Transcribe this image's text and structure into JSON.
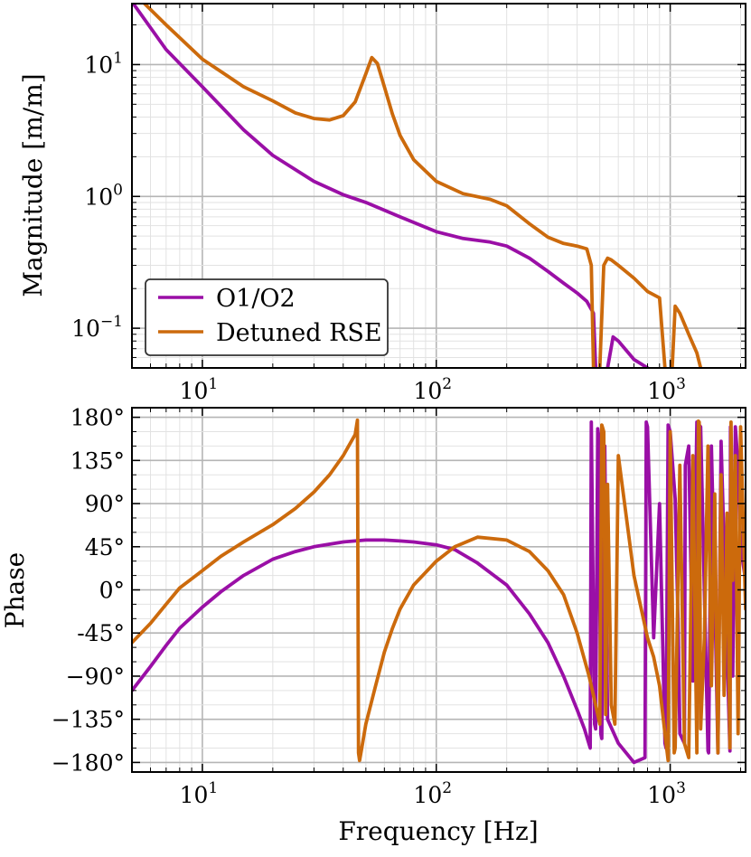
{
  "chart_data": [
    {
      "type": "line",
      "panel": "magnitude",
      "xscale": "log",
      "yscale": "log",
      "xlim": [
        5,
        2100
      ],
      "ylim": [
        0.05,
        29
      ],
      "ylabel": "Magnitude [m/m]",
      "xticks": [
        {
          "value": 10,
          "base": "10",
          "exp": "1"
        },
        {
          "value": 100,
          "base": "10",
          "exp": "2"
        },
        {
          "value": 1000,
          "base": "10",
          "exp": "3"
        }
      ],
      "yticks": [
        {
          "value": 10,
          "base": "10",
          "exp": "1"
        },
        {
          "value": 1,
          "base": "10",
          "exp": "0"
        },
        {
          "value": 0.1,
          "base": "10",
          "exp": "−1"
        }
      ],
      "grid": true,
      "legend": {
        "position": "bottom-left"
      },
      "series": [
        {
          "name": "O1/O2",
          "color": "#9a0fa6",
          "x": [
            5,
            7,
            10,
            15,
            20,
            30,
            40,
            50,
            70,
            100,
            130,
            170,
            200,
            250,
            300,
            350,
            400,
            440,
            470,
            480,
            500,
            520,
            540,
            570,
            600,
            700,
            800
          ],
          "y": [
            30,
            13,
            6.8,
            3.2,
            2.05,
            1.3,
            1.03,
            0.9,
            0.7,
            0.54,
            0.48,
            0.45,
            0.42,
            0.34,
            0.27,
            0.22,
            0.185,
            0.16,
            0.13,
            0.05,
            null,
            null,
            0.05,
            0.086,
            0.08,
            0.058,
            0.05
          ]
        },
        {
          "name": "Detuned RSE",
          "color": "#cc6a0c",
          "x": [
            5,
            7,
            10,
            15,
            20,
            25,
            30,
            35,
            40,
            45,
            50,
            53,
            56,
            60,
            65,
            70,
            80,
            100,
            130,
            170,
            200,
            250,
            300,
            350,
            400,
            440,
            460,
            470,
            480,
            490,
            500,
            520,
            540,
            560,
            600,
            700,
            800,
            900,
            950,
            980,
            1000,
            1020,
            1050,
            1100,
            1200,
            1300,
            1350
          ],
          "y": [
            36,
            20,
            11,
            6.8,
            5.3,
            4.3,
            3.9,
            3.8,
            4.1,
            5.2,
            8.5,
            11.3,
            10.2,
            6.8,
            4.2,
            2.9,
            1.9,
            1.3,
            1.05,
            0.95,
            0.85,
            0.62,
            0.49,
            0.44,
            0.42,
            0.4,
            0.3,
            0.05,
            null,
            null,
            0.05,
            0.3,
            0.34,
            0.33,
            0.3,
            0.24,
            0.19,
            0.17,
            0.05,
            null,
            null,
            0.05,
            0.147,
            0.13,
            0.09,
            0.065,
            0.05
          ]
        }
      ]
    },
    {
      "type": "line",
      "panel": "phase",
      "xscale": "log",
      "xlim": [
        5,
        2100
      ],
      "ylim": [
        -190,
        190
      ],
      "xlabel": "Frequency [Hz]",
      "ylabel": "Phase",
      "xticks": [
        {
          "value": 10,
          "base": "10",
          "exp": "1"
        },
        {
          "value": 100,
          "base": "10",
          "exp": "2"
        },
        {
          "value": 1000,
          "base": "10",
          "exp": "3"
        }
      ],
      "yticks": [
        {
          "value": 180,
          "label": "180°"
        },
        {
          "value": 135,
          "label": "135°"
        },
        {
          "value": 90,
          "label": "90°"
        },
        {
          "value": 45,
          "label": "45°"
        },
        {
          "value": 0,
          "label": "0°"
        },
        {
          "value": -45,
          "label": "-45°"
        },
        {
          "value": -90,
          "label": "−90°"
        },
        {
          "value": -135,
          "label": "−135°"
        },
        {
          "value": -180,
          "label": "−180°"
        }
      ],
      "grid": true,
      "series": [
        {
          "name": "O1/O2",
          "color": "#9a0fa6",
          "x": [
            5,
            6,
            7,
            8,
            10,
            12,
            15,
            20,
            25,
            30,
            40,
            50,
            60,
            70,
            80,
            100,
            120,
            150,
            200,
            250,
            300,
            350,
            400,
            430,
            455,
            460,
            475,
            480,
            490,
            495,
            505,
            510,
            520,
            525,
            540,
            600,
            700,
            780,
            790,
            800,
            850,
            900,
            950,
            960,
            980,
            1000,
            1050,
            1080,
            1100,
            1150,
            1160,
            1200,
            1250,
            1300,
            1350,
            1450,
            1460,
            1500,
            1550,
            1600,
            1650,
            1800,
            1810,
            1850,
            1900,
            1950,
            2000,
            2100
          ],
          "y": [
            -105,
            -80,
            -58,
            -40,
            -18,
            -2,
            15,
            32,
            40,
            45,
            50,
            52,
            52,
            51,
            50,
            47,
            42,
            28,
            5,
            -25,
            -55,
            -90,
            -125,
            -145,
            -165,
            175,
            -140,
            -145,
            168,
            160,
            -150,
            -155,
            145,
            150,
            -135,
            -160,
            -180,
            -175,
            175,
            170,
            -50,
            90,
            -160,
            -165,
            172,
            165,
            95,
            -30,
            -150,
            -160,
            130,
            150,
            -95,
            175,
            170,
            -168,
            -170,
            150,
            0,
            -170,
            155,
            -168,
            170,
            -90,
            170,
            130,
            45,
            10
          ]
        },
        {
          "name": "Detuned RSE",
          "color": "#cc6a0c",
          "x": [
            5,
            6,
            7,
            8,
            10,
            12,
            15,
            20,
            25,
            30,
            35,
            40,
            45,
            46,
            46.5,
            47,
            48,
            50,
            55,
            60,
            65,
            70,
            80,
            100,
            120,
            150,
            200,
            250,
            300,
            350,
            400,
            450,
            480,
            500,
            510,
            520,
            530,
            540,
            560,
            580,
            600,
            700,
            800,
            850,
            900,
            950,
            980,
            1000,
            1040,
            1050,
            1100,
            1150,
            1200,
            1250,
            1300,
            1320,
            1330,
            1350,
            1400,
            1450,
            1500,
            1550,
            1600,
            1650,
            1700,
            1750,
            1800,
            1820,
            1850,
            1900,
            1950,
            2000,
            2100
          ],
          "y": [
            -55,
            -35,
            -15,
            2,
            20,
            35,
            50,
            68,
            85,
            102,
            120,
            140,
            162,
            177,
            -170,
            -178,
            -165,
            -140,
            -100,
            -65,
            -40,
            -20,
            5,
            30,
            45,
            55,
            52,
            40,
            20,
            -5,
            -45,
            -90,
            -120,
            -140,
            172,
            165,
            -130,
            110,
            -120,
            -140,
            140,
            15,
            -50,
            -70,
            -100,
            -150,
            -178,
            165,
            -170,
            -165,
            130,
            -160,
            -175,
            140,
            -170,
            176,
            175,
            -145,
            -50,
            150,
            -100,
            100,
            -170,
            120,
            -110,
            80,
            -165,
            175,
            10,
            140,
            -150,
            170,
            -20
          ]
        }
      ]
    }
  ]
}
